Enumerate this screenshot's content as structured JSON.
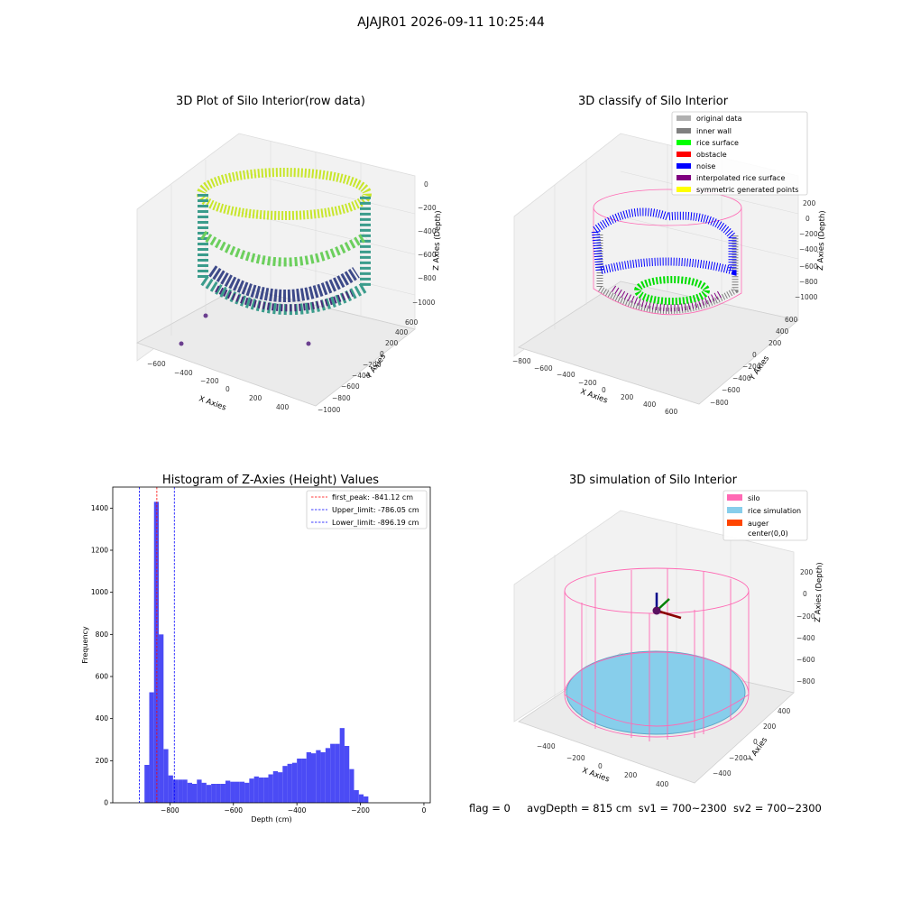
{
  "figure": {
    "suptitle": "AJAJR01 2026-09-11 10:25:44"
  },
  "status": {
    "flag": "flag = 0",
    "avg_depth": "avgDepth = 815 cm",
    "sv1": "sv1 = 700~2300",
    "sv2": "sv2 = 700~2300"
  },
  "colors": {
    "original": "#b0b0b0",
    "inner_wall": "#808080",
    "rice_surface": "#00ff00",
    "obstacle": "#ff0000",
    "noise": "#0000ff",
    "interpolated": "#800080",
    "symmetric": "#ffff00",
    "silo": "#ff69b4",
    "rice_sim": "#87ceeb",
    "auger": "#ff4500",
    "hist_bar": "#4b4bf5",
    "first_peak_line": "#ff0000",
    "limit_line": "#0000ff"
  },
  "chart_data": [
    {
      "type": "scatter",
      "title": "3D Plot of Silo Interior(row data)",
      "xlabel": "X Axies",
      "ylabel": "Y Axies",
      "zlabel": "Z Axies (Depth)",
      "x_ticks": [
        "−600",
        "−400",
        "−200",
        "0",
        "200",
        "400"
      ],
      "y_ticks": [
        "−1000",
        "−800",
        "−600",
        "−400",
        "−200",
        "0",
        "200",
        "400",
        "600"
      ],
      "z_ticks": [
        "0",
        "−200",
        "−400",
        "−600",
        "−800",
        "−1000"
      ],
      "colormap": "viridis"
    },
    {
      "type": "scatter",
      "title": "3D classify of Silo Interior",
      "xlabel": "X Axies",
      "ylabel": "Y Axies",
      "zlabel": "Z Axies (Depth)",
      "x_ticks": [
        "−800",
        "−600",
        "−400",
        "−200",
        "0",
        "200",
        "400",
        "600"
      ],
      "y_ticks": [
        "−800",
        "−600",
        "−400",
        "−200",
        "0",
        "200",
        "400",
        "600"
      ],
      "z_ticks": [
        "200",
        "0",
        "−200",
        "−400",
        "−600",
        "−800",
        "−1000"
      ],
      "legend": [
        "original data",
        "inner wall",
        "rice surface",
        "obstacle",
        "noise",
        "interpolated rice surface",
        "symmetric generated points"
      ],
      "legend_position": "top-right"
    },
    {
      "type": "bar",
      "title": "Histogram of Z-Axies (Height) Values",
      "xlabel": "Depth (cm)",
      "ylabel": "Frequency",
      "xlim": [
        -980,
        20
      ],
      "ylim": [
        0,
        1500
      ],
      "x_ticks": [
        -800,
        -600,
        -400,
        -200,
        0
      ],
      "y_ticks": [
        0,
        200,
        400,
        600,
        800,
        1000,
        1200,
        1400
      ],
      "bin_start": -880,
      "bin_width": 15,
      "values": [
        180,
        525,
        1430,
        800,
        255,
        130,
        110,
        110,
        110,
        95,
        90,
        110,
        95,
        85,
        90,
        90,
        90,
        105,
        100,
        100,
        100,
        95,
        115,
        125,
        120,
        120,
        135,
        150,
        145,
        175,
        185,
        190,
        210,
        210,
        240,
        235,
        250,
        240,
        260,
        280,
        280,
        355,
        270,
        160,
        60,
        40,
        30
      ],
      "lines": [
        {
          "label": "first_peak: -841.12 cm",
          "x": -841.12,
          "style": "red-dashed"
        },
        {
          "label": "Upper_limit: -786.05 cm",
          "x": -786.05,
          "style": "blue-dashed"
        },
        {
          "label": "Lower_limit: -896.19 cm",
          "x": -896.19,
          "style": "blue-dashed"
        }
      ],
      "legend_position": "top-right"
    },
    {
      "type": "scatter",
      "title": "3D simulation of Silo Interior",
      "xlabel": "X Axies",
      "ylabel": "Y Axies",
      "zlabel": "Z Axies (Depth)",
      "x_ticks": [
        "−400",
        "−200",
        "0",
        "200",
        "400"
      ],
      "y_ticks": [
        "−400",
        "−200",
        "0",
        "200",
        "400"
      ],
      "z_ticks": [
        "200",
        "0",
        "−200",
        "−400",
        "−600",
        "−800"
      ],
      "legend": [
        "silo",
        "rice simulation",
        "auger",
        "center(0,0)"
      ],
      "legend_position": "top-right"
    }
  ]
}
